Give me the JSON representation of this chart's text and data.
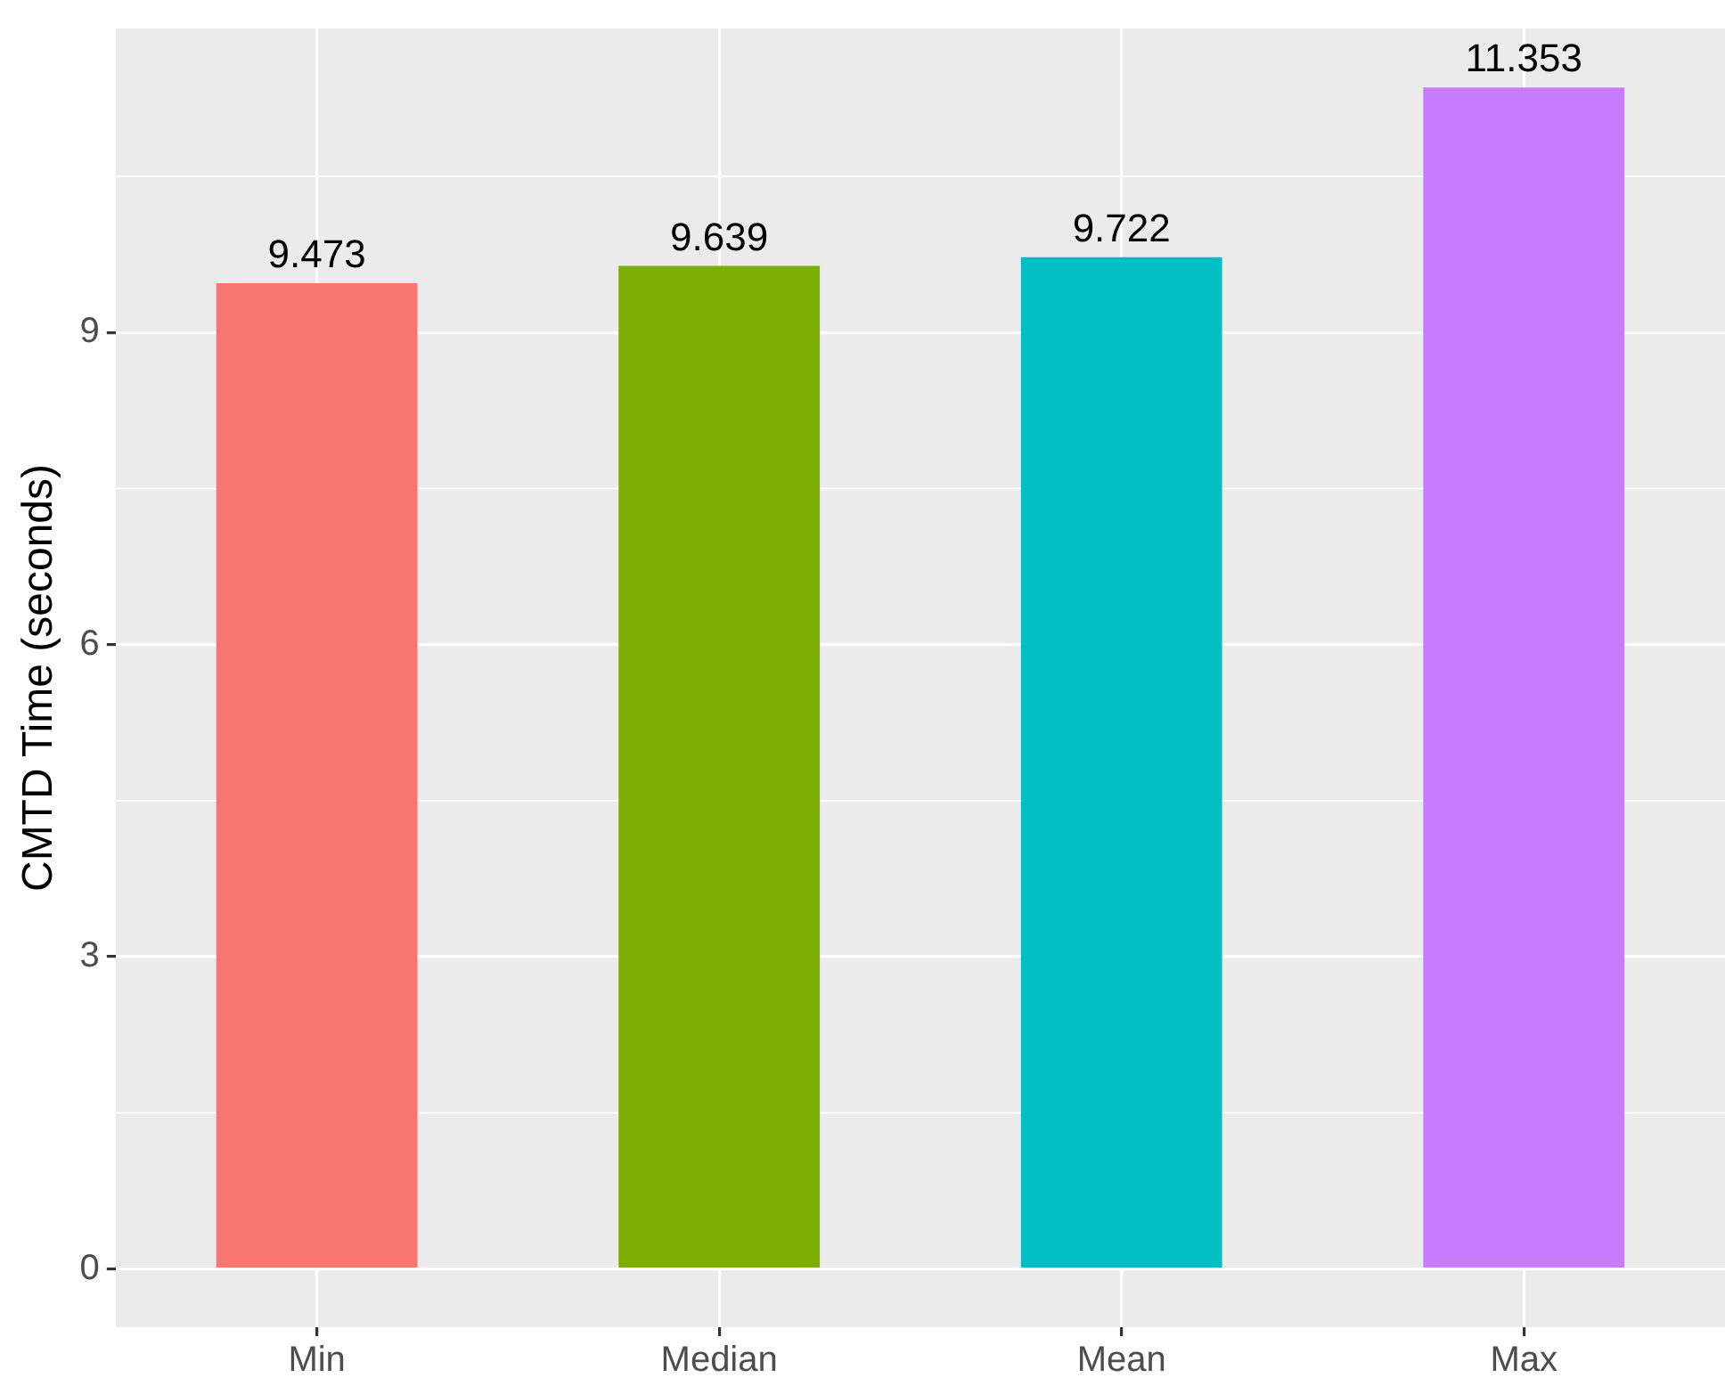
{
  "chart_data": {
    "type": "bar",
    "ylabel": "CMTD Time (seconds)",
    "categories": [
      "Min",
      "Median",
      "Mean",
      "Max"
    ],
    "values": [
      9.473,
      9.639,
      9.722,
      11.353
    ],
    "colors": [
      "#f8766d",
      "#7cae00",
      "#00bfc4",
      "#c77cff"
    ],
    "ylim": [
      -0.56,
      11.92
    ],
    "yticks": [
      0,
      3,
      6,
      9
    ],
    "grid": true,
    "data_labels": true,
    "legend": false
  }
}
